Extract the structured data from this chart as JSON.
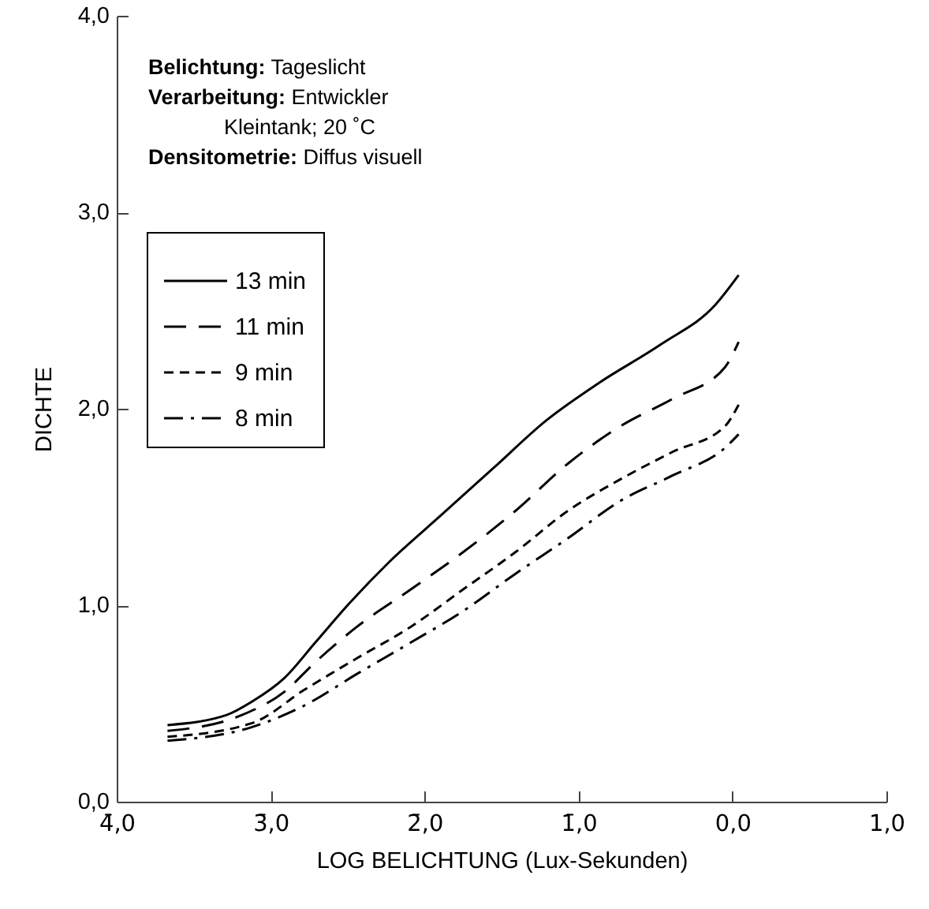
{
  "chart_data": {
    "type": "line",
    "xlabel": "LOG BELICHTUNG (Lux-Sekunden)",
    "ylabel": "DICHTE",
    "annotations": [
      "Belichtung: Tageslicht",
      "Verarbeitung: Entwickler",
      "Kleintank; 20 ˚C",
      "Densitometrie: Diffus visuell"
    ],
    "xlim": [
      -4,
      1
    ],
    "ylim": [
      0,
      4
    ],
    "xticks": [
      {
        "value": -4,
        "label": "4̄,0"
      },
      {
        "value": -3,
        "label": "3̄,0"
      },
      {
        "value": -2,
        "label": "2̄,0"
      },
      {
        "value": -1,
        "label": "1̄,0"
      },
      {
        "value": 0,
        "label": "0,0"
      },
      {
        "value": 1,
        "label": "1,0"
      }
    ],
    "yticks": [
      {
        "value": 0,
        "label": "0,0"
      },
      {
        "value": 1,
        "label": "1,0"
      },
      {
        "value": 2,
        "label": "2,0"
      },
      {
        "value": 3,
        "label": "3,0"
      },
      {
        "value": 4,
        "label": "4,0"
      }
    ],
    "grid": false,
    "legend": "top left",
    "marker": "none",
    "series": [
      {
        "name": "13 min",
        "color": "#000000",
        "line_style": "solid",
        "x": [
          -3.67,
          -3.29,
          -3.12,
          -2.91,
          -2.71,
          -2.5,
          -2.23,
          -1.89,
          -1.55,
          -1.21,
          -0.87,
          -0.46,
          -0.11,
          0.04
        ],
        "values": [
          0.39,
          0.44,
          0.51,
          0.63,
          0.81,
          1.0,
          1.22,
          1.46,
          1.7,
          1.94,
          2.13,
          2.33,
          2.53,
          2.68
        ]
      },
      {
        "name": "11 min",
        "color": "#000000",
        "line_style": "dashed",
        "x": [
          -3.67,
          -3.19,
          -2.91,
          -2.71,
          -2.44,
          -2.09,
          -1.75,
          -1.41,
          -1.07,
          -0.73,
          -0.39,
          -0.05,
          0.04
        ],
        "values": [
          0.36,
          0.44,
          0.56,
          0.71,
          0.89,
          1.08,
          1.27,
          1.48,
          1.72,
          1.91,
          2.05,
          2.21,
          2.34
        ]
      },
      {
        "name": "9 min",
        "color": "#000000",
        "line_style": "dotted",
        "x": [
          -3.67,
          -3.12,
          -2.78,
          -2.44,
          -2.09,
          -1.75,
          -1.41,
          -1.07,
          -0.73,
          -0.39,
          -0.05,
          0.04
        ],
        "values": [
          0.33,
          0.4,
          0.57,
          0.73,
          0.89,
          1.08,
          1.27,
          1.48,
          1.64,
          1.78,
          1.91,
          2.02
        ]
      },
      {
        "name": "8 min",
        "color": "#000000",
        "line_style": "dashdot",
        "x": [
          -3.67,
          -3.12,
          -2.78,
          -2.44,
          -2.09,
          -1.75,
          -1.41,
          -1.07,
          -0.73,
          -0.39,
          -0.05,
          0.04
        ],
        "values": [
          0.31,
          0.38,
          0.49,
          0.65,
          0.81,
          0.97,
          1.16,
          1.34,
          1.53,
          1.66,
          1.8,
          1.87
        ]
      }
    ]
  }
}
